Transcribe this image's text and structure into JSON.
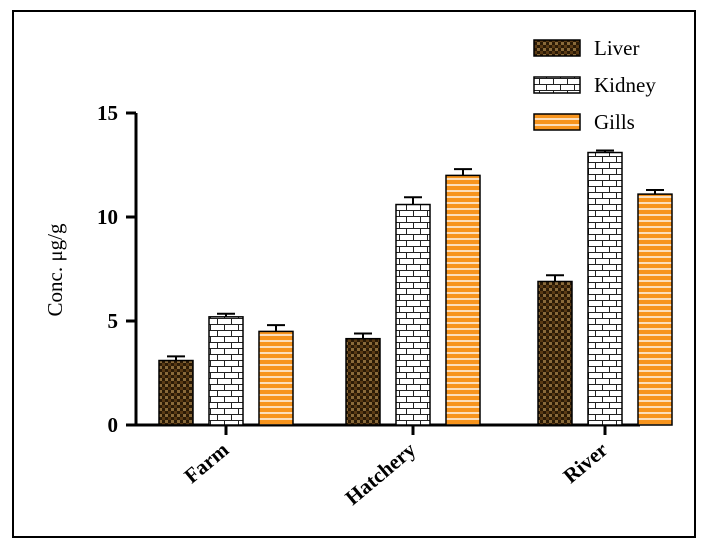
{
  "chart_data": {
    "type": "bar",
    "categories": [
      "Farm",
      "Hatchery",
      "River"
    ],
    "series": [
      {
        "name": "Liver",
        "values": [
          3.1,
          4.15,
          6.9
        ],
        "errors": [
          0.2,
          0.25,
          0.3
        ],
        "pattern": "checker",
        "color": "#5a3a14"
      },
      {
        "name": "Kidney",
        "values": [
          5.2,
          10.6,
          13.1
        ],
        "errors": [
          0.15,
          0.35,
          0.1
        ],
        "pattern": "brick",
        "color": "#ffffff"
      },
      {
        "name": "Gills",
        "values": [
          4.5,
          12.0,
          11.1
        ],
        "errors": [
          0.3,
          0.3,
          0.2
        ],
        "pattern": "horizontal",
        "color": "#f7941d"
      }
    ],
    "ylabel": "Conc. μg/g",
    "xlabel": "",
    "ylim": [
      0,
      15
    ],
    "yticks": [
      0,
      5,
      10,
      15
    ],
    "legend": "top-right",
    "grid": false
  }
}
